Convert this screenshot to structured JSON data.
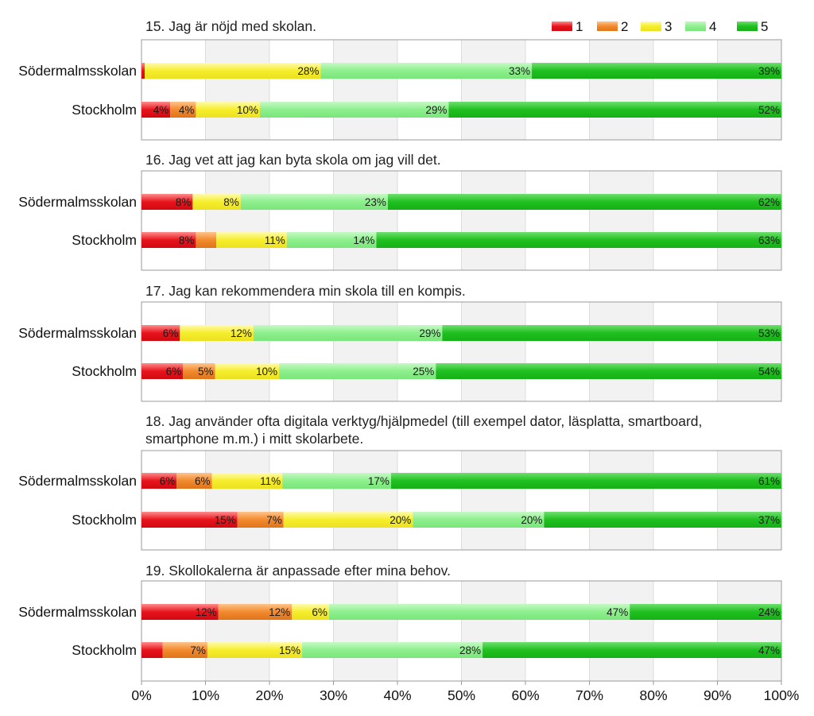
{
  "chart_data": {
    "type": "bar",
    "orientation": "horizontal",
    "stacked": true,
    "xlim": [
      0,
      100
    ],
    "x_ticks": [
      "0%",
      "10%",
      "20%",
      "30%",
      "40%",
      "50%",
      "60%",
      "70%",
      "80%",
      "90%",
      "100%"
    ],
    "legend": {
      "position": "top-right",
      "entries": [
        {
          "label": "1",
          "color": "#e8141c"
        },
        {
          "label": "2",
          "color": "#f28a2e"
        },
        {
          "label": "3",
          "color": "#f6ee2a"
        },
        {
          "label": "4",
          "color": "#8df08d"
        },
        {
          "label": "5",
          "color": "#1fc01f"
        }
      ]
    },
    "panels": [
      {
        "title": [
          "15. Jag är nöjd med skolan."
        ],
        "rows": [
          {
            "label": "Södermalmsskolan",
            "values": [
              0.5,
              0,
              27.5,
              33,
              39
            ],
            "labels": [
              "",
              "",
              "28%",
              "33%",
              "39%"
            ]
          },
          {
            "label": "Stockholm",
            "values": [
              4.5,
              4,
              10,
              29.5,
              52
            ],
            "labels": [
              "4%",
              "4%",
              "10%",
              "29%",
              "52%"
            ]
          }
        ]
      },
      {
        "title": [
          "16. Jag vet att jag kan byta skola om jag vill det."
        ],
        "rows": [
          {
            "label": "Södermalmsskolan",
            "values": [
              8,
              0,
              7.5,
              23,
              61.5
            ],
            "labels": [
              "8%",
              "",
              "8%",
              "23%",
              "62%"
            ]
          },
          {
            "label": "Stockholm",
            "values": [
              8.5,
              3.2,
              11,
              14,
              63.3
            ],
            "labels": [
              "8%",
              "",
              "11%",
              "14%",
              "63%"
            ]
          }
        ]
      },
      {
        "title": [
          "17. Jag kan rekommendera min skola till en kompis."
        ],
        "rows": [
          {
            "label": "Södermalmsskolan",
            "values": [
              6,
              0,
              11.5,
              29.5,
              53
            ],
            "labels": [
              "6%",
              "",
              "12%",
              "29%",
              "53%"
            ]
          },
          {
            "label": "Stockholm",
            "values": [
              6.5,
              5,
              10,
              24.5,
              54
            ],
            "labels": [
              "6%",
              "5%",
              "10%",
              "25%",
              "54%"
            ]
          }
        ]
      },
      {
        "title": [
          "18. Jag använder ofta digitala verktyg/hjälpmedel (till exempel dator, läsplatta, smartboard,",
          "smartphone m.m.) i mitt skolarbete."
        ],
        "rows": [
          {
            "label": "Södermalmsskolan",
            "values": [
              5.5,
              5.5,
              11,
              17,
              61
            ],
            "labels": [
              "6%",
              "6%",
              "11%",
              "17%",
              "61%"
            ]
          },
          {
            "label": "Stockholm",
            "values": [
              15,
              7.2,
              20.2,
              20.5,
              37.1
            ],
            "labels": [
              "15%",
              "7%",
              "20%",
              "20%",
              "37%"
            ]
          }
        ]
      },
      {
        "title": [
          "19. Skollokalerna är anpassade efter mina behov."
        ],
        "rows": [
          {
            "label": "Södermalmsskolan",
            "values": [
              12,
              11.5,
              5.8,
              47,
              23.7
            ],
            "labels": [
              "12%",
              "12%",
              "6%",
              "47%",
              "24%"
            ]
          },
          {
            "label": "Stockholm",
            "values": [
              3.3,
              7,
              14.8,
              28.2,
              46.7
            ],
            "labels": [
              "",
              "7%",
              "15%",
              "28%",
              "47%"
            ]
          }
        ]
      }
    ]
  }
}
